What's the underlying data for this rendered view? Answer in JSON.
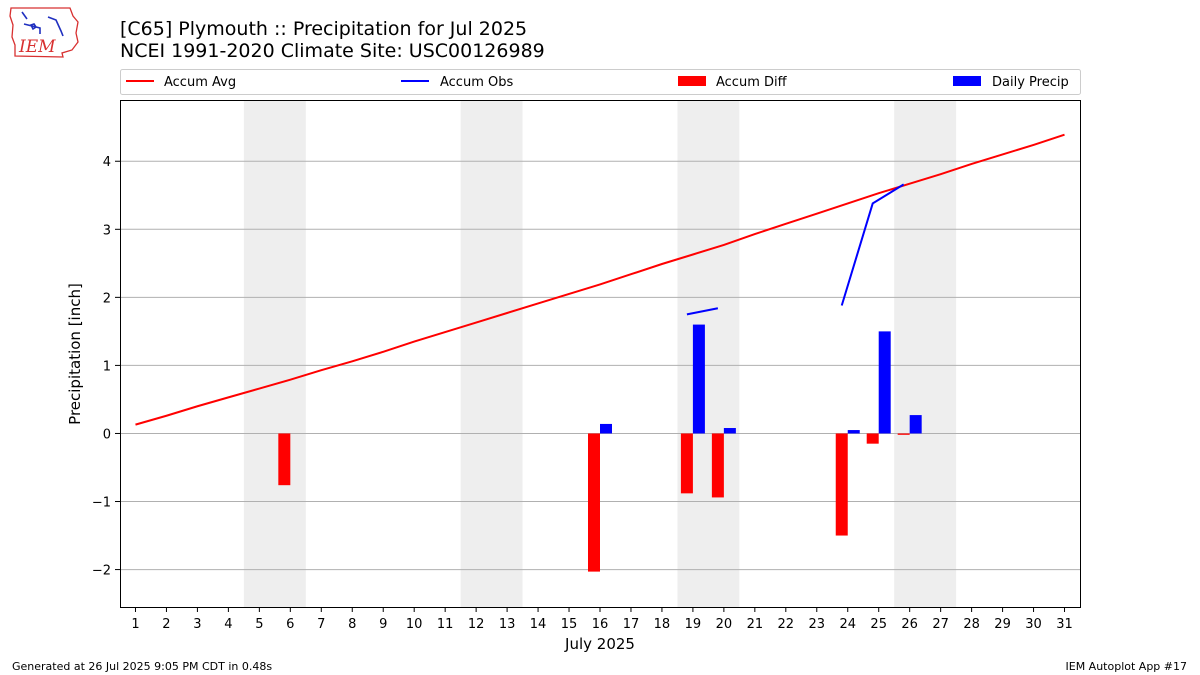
{
  "title_line1": "[C65] Plymouth :: Precipitation for Jul 2025",
  "title_line2": "NCEI 1991-2020 Climate Site: USC00126989",
  "logo_text": "IEM",
  "footer_left": "Generated at 26 Jul 2025 9:05 PM CDT in 0.48s",
  "footer_right": "IEM Autoplot App #17",
  "colors": {
    "accum_avg": "#ff0000",
    "accum_obs": "#0000ff",
    "accum_diff": "#ff0000",
    "daily_precip": "#0000ff",
    "weekend_shade": "#eeeeee",
    "grid": "#b0b0b0"
  },
  "chart_data": {
    "type": "bar",
    "xlabel": "July 2025",
    "ylabel": "Precipitation [inch]",
    "xlim": [
      0.5,
      31.5
    ],
    "ylim": [
      -2.55,
      4.9
    ],
    "x_ticks": [
      1,
      2,
      3,
      4,
      5,
      6,
      7,
      8,
      9,
      10,
      11,
      12,
      13,
      14,
      15,
      16,
      17,
      18,
      19,
      20,
      21,
      22,
      23,
      24,
      25,
      26,
      27,
      28,
      29,
      30,
      31
    ],
    "y_ticks": [
      -2,
      -1,
      0,
      1,
      2,
      3,
      4
    ],
    "grid": "horizontal",
    "legend_position": "top",
    "legend": [
      "Accum Avg",
      "Accum Obs",
      "Accum Diff",
      "Daily Precip"
    ],
    "shaded_days": [
      [
        5,
        6
      ],
      [
        12,
        13
      ],
      [
        19,
        20
      ],
      [
        26,
        27
      ]
    ],
    "accum_avg": {
      "name": "Accum Avg",
      "x": [
        1,
        2,
        3,
        4,
        5,
        6,
        7,
        8,
        9,
        10,
        11,
        12,
        13,
        14,
        15,
        16,
        17,
        18,
        19,
        20,
        21,
        22,
        23,
        24,
        25,
        26,
        27,
        28,
        29,
        30,
        31
      ],
      "values": [
        0.13,
        0.26,
        0.4,
        0.53,
        0.66,
        0.79,
        0.93,
        1.06,
        1.2,
        1.35,
        1.49,
        1.63,
        1.77,
        1.91,
        2.05,
        2.19,
        2.34,
        2.49,
        2.63,
        2.77,
        2.93,
        3.08,
        3.23,
        3.38,
        3.53,
        3.67,
        3.81,
        3.96,
        4.1,
        4.24,
        4.39
      ]
    },
    "accum_obs": {
      "name": "Accum Obs",
      "segments": [
        {
          "x": [
            19,
            20
          ],
          "values": [
            1.75,
            1.84
          ]
        },
        {
          "x": [
            24,
            25,
            26
          ],
          "values": [
            1.88,
            3.38,
            3.66
          ]
        }
      ]
    },
    "accum_diff": {
      "name": "Accum Diff",
      "x": [
        6,
        16,
        19,
        20,
        24,
        25,
        26
      ],
      "values": [
        -0.76,
        -2.03,
        -0.88,
        -0.94,
        -1.5,
        -0.15,
        -0.02
      ]
    },
    "daily_precip": {
      "name": "Daily Precip",
      "x": [
        16,
        19,
        20,
        24,
        25,
        26
      ],
      "values": [
        0.14,
        1.6,
        0.08,
        0.05,
        1.5,
        0.27
      ]
    }
  }
}
